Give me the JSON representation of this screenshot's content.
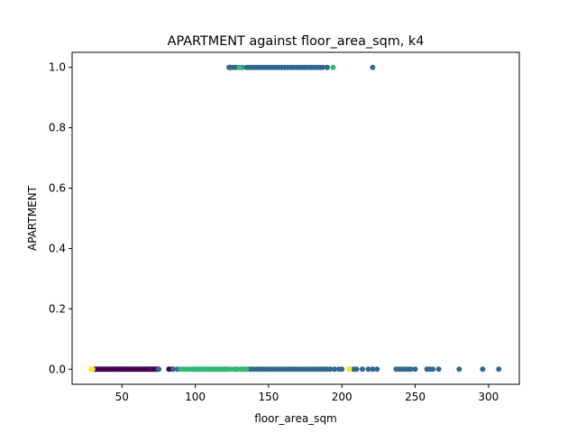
{
  "chart_data": {
    "type": "scatter",
    "title": "APARTMENT against floor_area_sqm, k4",
    "xlabel": "floor_area_sqm",
    "ylabel": "APARTMENT",
    "xlim": [
      16,
      321
    ],
    "ylim": [
      -0.05,
      1.05
    ],
    "xticks": [
      50,
      100,
      150,
      200,
      250,
      300
    ],
    "yticks": [
      0.0,
      0.2,
      0.4,
      0.6,
      0.8,
      1.0
    ],
    "ytick_labels": [
      "0.0",
      "0.2",
      "0.4",
      "0.6",
      "0.8",
      "1.0"
    ],
    "grid": false,
    "legend": "none",
    "series": [
      {
        "color": "#440154",
        "points": [
          [
            31,
            0
          ],
          [
            32,
            0
          ],
          [
            33,
            0
          ],
          [
            34,
            0
          ],
          [
            35,
            0
          ],
          [
            36,
            0
          ],
          [
            37,
            0
          ],
          [
            38,
            0
          ],
          [
            39,
            0
          ],
          [
            40,
            0
          ],
          [
            41,
            0
          ],
          [
            42,
            0
          ],
          [
            43,
            0
          ],
          [
            44,
            0
          ],
          [
            45,
            0
          ],
          [
            46,
            0
          ],
          [
            47,
            0
          ],
          [
            48,
            0
          ],
          [
            49,
            0
          ],
          [
            50,
            0
          ],
          [
            51,
            0
          ],
          [
            52,
            0
          ],
          [
            53,
            0
          ],
          [
            54,
            0
          ],
          [
            55,
            0
          ],
          [
            56,
            0
          ],
          [
            57,
            0
          ],
          [
            58,
            0
          ],
          [
            59,
            0
          ],
          [
            60,
            0
          ],
          [
            61,
            0
          ],
          [
            62,
            0
          ],
          [
            63,
            0
          ],
          [
            64,
            0
          ],
          [
            65,
            0
          ],
          [
            66,
            0
          ],
          [
            67,
            0
          ],
          [
            68,
            0
          ],
          [
            69,
            0
          ],
          [
            70,
            0
          ],
          [
            71,
            0
          ],
          [
            72,
            0
          ],
          [
            73,
            0
          ],
          [
            74,
            0
          ],
          [
            75,
            0
          ],
          [
            82,
            0
          ],
          [
            84,
            0
          ]
        ]
      },
      {
        "color": "#31688e",
        "points": [
          [
            75,
            0
          ],
          [
            85,
            0
          ],
          [
            88,
            0
          ],
          [
            100,
            0
          ],
          [
            113,
            0
          ],
          [
            118,
            0
          ],
          [
            122,
            0
          ],
          [
            128,
            0
          ],
          [
            132,
            0
          ],
          [
            136,
            0
          ],
          [
            138,
            0
          ],
          [
            140,
            0
          ],
          [
            142,
            0
          ],
          [
            144,
            0
          ],
          [
            146,
            0
          ],
          [
            148,
            0
          ],
          [
            150,
            0
          ],
          [
            152,
            0
          ],
          [
            154,
            0
          ],
          [
            156,
            0
          ],
          [
            158,
            0
          ],
          [
            160,
            0
          ],
          [
            162,
            0
          ],
          [
            164,
            0
          ],
          [
            166,
            0
          ],
          [
            168,
            0
          ],
          [
            170,
            0
          ],
          [
            172,
            0
          ],
          [
            174,
            0
          ],
          [
            176,
            0
          ],
          [
            178,
            0
          ],
          [
            180,
            0
          ],
          [
            182,
            0
          ],
          [
            184,
            0
          ],
          [
            186,
            0
          ],
          [
            188,
            0
          ],
          [
            190,
            0
          ],
          [
            192,
            0
          ],
          [
            195,
            0
          ],
          [
            198,
            0
          ],
          [
            200,
            0
          ],
          [
            205,
            0
          ],
          [
            208,
            0
          ],
          [
            210,
            0
          ],
          [
            214,
            0
          ],
          [
            218,
            0
          ],
          [
            221,
            0
          ],
          [
            224,
            0
          ],
          [
            237,
            0
          ],
          [
            239,
            0
          ],
          [
            241,
            0
          ],
          [
            243,
            0
          ],
          [
            245,
            0
          ],
          [
            247,
            0
          ],
          [
            250,
            0
          ],
          [
            258,
            0
          ],
          [
            260,
            0
          ],
          [
            262,
            0
          ],
          [
            266,
            0
          ],
          [
            280,
            0
          ],
          [
            296,
            0
          ],
          [
            307,
            0
          ],
          [
            123,
            1
          ],
          [
            124,
            1
          ],
          [
            126,
            1
          ],
          [
            128,
            1
          ],
          [
            132,
            1
          ],
          [
            135,
            1
          ],
          [
            137,
            1
          ],
          [
            139,
            1
          ],
          [
            141,
            1
          ],
          [
            143,
            1
          ],
          [
            145,
            1
          ],
          [
            147,
            1
          ],
          [
            149,
            1
          ],
          [
            151,
            1
          ],
          [
            153,
            1
          ],
          [
            155,
            1
          ],
          [
            157,
            1
          ],
          [
            159,
            1
          ],
          [
            161,
            1
          ],
          [
            163,
            1
          ],
          [
            165,
            1
          ],
          [
            167,
            1
          ],
          [
            169,
            1
          ],
          [
            171,
            1
          ],
          [
            173,
            1
          ],
          [
            175,
            1
          ],
          [
            177,
            1
          ],
          [
            179,
            1
          ],
          [
            181,
            1
          ],
          [
            183,
            1
          ],
          [
            185,
            1
          ],
          [
            187,
            1
          ],
          [
            190,
            1
          ],
          [
            221,
            1
          ]
        ]
      },
      {
        "color": "#35b779",
        "points": [
          [
            90,
            0
          ],
          [
            92,
            0
          ],
          [
            94,
            0
          ],
          [
            96,
            0
          ],
          [
            98,
            0
          ],
          [
            99,
            0
          ],
          [
            101,
            0
          ],
          [
            102,
            0
          ],
          [
            103,
            0
          ],
          [
            104,
            0
          ],
          [
            105,
            0
          ],
          [
            106,
            0
          ],
          [
            107,
            0
          ],
          [
            108,
            0
          ],
          [
            109,
            0
          ],
          [
            110,
            0
          ],
          [
            111,
            0
          ],
          [
            112,
            0
          ],
          [
            114,
            0
          ],
          [
            115,
            0
          ],
          [
            116,
            0
          ],
          [
            117,
            0
          ],
          [
            119,
            0
          ],
          [
            120,
            0
          ],
          [
            121,
            0
          ],
          [
            123,
            0
          ],
          [
            125,
            0
          ],
          [
            127,
            0
          ],
          [
            129,
            0
          ],
          [
            131,
            0
          ],
          [
            133,
            0
          ],
          [
            135,
            0
          ],
          [
            130,
            1
          ],
          [
            131,
            1
          ],
          [
            194,
            1
          ]
        ]
      },
      {
        "color": "#fde725",
        "points": [
          [
            29,
            0
          ],
          [
            30,
            0
          ],
          [
            205,
            0
          ]
        ]
      }
    ]
  }
}
